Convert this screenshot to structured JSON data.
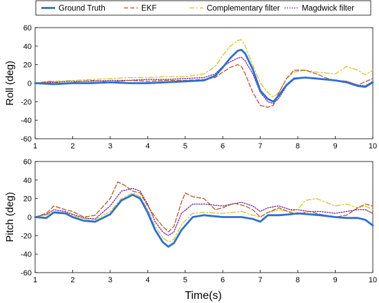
{
  "chart_data": {
    "type": "line",
    "legend": {
      "placement": "top",
      "entries": [
        {
          "name": "Ground Truth",
          "color": "#2e6fd0",
          "style": "solid"
        },
        {
          "name": "EKF",
          "color": "#b0562a",
          "style": "dashed"
        },
        {
          "name": "Complementary filter",
          "color": "#d8c12a",
          "style": "dashdot"
        },
        {
          "name": "Magdwick filter",
          "color": "#7a2f9a",
          "style": "dotted"
        }
      ]
    },
    "xlabel": "Time(s)",
    "xlim": [
      1,
      10
    ],
    "xticks": [
      1,
      2,
      3,
      4,
      5,
      6,
      7,
      8,
      9,
      10
    ],
    "panels": [
      {
        "ylabel": "Roll (deg)",
        "ylim": [
          -60,
          60
        ],
        "yticks": [
          60,
          40,
          20,
          0,
          -20,
          -40,
          -60
        ],
        "series": [
          {
            "name": "Ground Truth",
            "x": [
              1,
              1.5,
              2,
              2.5,
              3,
              3.5,
              4,
              4.5,
              5,
              5.5,
              5.8,
              6.0,
              6.2,
              6.4,
              6.5,
              6.6,
              6.8,
              7.0,
              7.2,
              7.35,
              7.5,
              7.7,
              7.9,
              8.2,
              8.5,
              9.0,
              9.3,
              9.6,
              9.8,
              10
            ],
            "y": [
              0,
              -1,
              0,
              0,
              1,
              0,
              0,
              1,
              2,
              3,
              8,
              17,
              27,
              35,
              36,
              32,
              15,
              -8,
              -17,
              -20,
              -13,
              -2,
              5,
              6,
              5,
              3,
              1,
              -3,
              -4,
              1
            ]
          },
          {
            "name": "EKF",
            "x": [
              1,
              1.4,
              1.8,
              2.2,
              2.6,
              3,
              3.5,
              4,
              4.5,
              5,
              5.5,
              5.8,
              6.0,
              6.2,
              6.4,
              6.5,
              6.6,
              6.8,
              7.0,
              7.2,
              7.35,
              7.5,
              7.7,
              7.9,
              8.2,
              8.5,
              8.8,
              9.0,
              9.3,
              9.6,
              10
            ],
            "y": [
              0,
              2,
              -1,
              2,
              3,
              1,
              3,
              2,
              3,
              3,
              4,
              6,
              12,
              17,
              20,
              18,
              10,
              -10,
              -24,
              -26,
              -24,
              -10,
              5,
              14,
              14,
              10,
              5,
              3,
              2,
              -2,
              5
            ]
          },
          {
            "name": "Complementary filter",
            "x": [
              1,
              1.5,
              2,
              2.5,
              3,
              3.5,
              4,
              4.5,
              5,
              5.5,
              5.8,
              6.0,
              6.2,
              6.4,
              6.5,
              6.6,
              6.8,
              7.0,
              7.2,
              7.35,
              7.5,
              7.7,
              7.9,
              8.2,
              8.5,
              9.0,
              9.3,
              9.6,
              9.8,
              10
            ],
            "y": [
              0,
              2,
              3,
              4,
              5,
              6,
              6,
              7,
              7,
              10,
              18,
              30,
              40,
              46,
              47,
              40,
              20,
              0,
              -10,
              -15,
              -10,
              5,
              12,
              14,
              12,
              10,
              18,
              14,
              9,
              14
            ]
          },
          {
            "name": "Magdwick filter",
            "x": [
              1,
              1.5,
              2,
              2.5,
              3,
              3.5,
              4,
              4.5,
              5,
              5.5,
              5.8,
              6.0,
              6.2,
              6.4,
              6.5,
              6.6,
              6.8,
              7.0,
              7.2,
              7.35,
              7.5,
              7.7,
              7.9,
              8.2,
              8.5,
              9.0,
              9.3,
              9.6,
              9.8,
              10
            ],
            "y": [
              0,
              1,
              2,
              2,
              3,
              3,
              4,
              4,
              5,
              6,
              10,
              18,
              23,
              27,
              28,
              24,
              10,
              -10,
              -20,
              -22,
              -16,
              -3,
              4,
              6,
              5,
              3,
              2,
              -2,
              -3,
              2
            ]
          }
        ]
      },
      {
        "ylabel": "Pitch (deg)",
        "ylim": [
          -60,
          60
        ],
        "yticks": [
          60,
          40,
          20,
          0,
          -20,
          -40,
          -60
        ],
        "series": [
          {
            "name": "Ground Truth",
            "x": [
              1,
              1.3,
              1.5,
              1.8,
              2,
              2.3,
              2.6,
              3,
              3.3,
              3.6,
              3.8,
              4.0,
              4.2,
              4.4,
              4.55,
              4.7,
              4.9,
              5.2,
              5.5,
              6.0,
              6.5,
              6.8,
              7.0,
              7.2,
              7.5,
              7.8,
              8.0,
              8.3,
              8.6,
              9.0,
              9.3,
              9.6,
              9.8,
              10
            ],
            "y": [
              0,
              -1,
              5,
              4,
              0,
              -4,
              -5,
              3,
              18,
              24,
              20,
              5,
              -14,
              -27,
              -32,
              -28,
              -14,
              0,
              2,
              0,
              0,
              -2,
              -5,
              2,
              2,
              3,
              4,
              3,
              2,
              0,
              -1,
              -1,
              -3,
              -9
            ]
          },
          {
            "name": "EKF",
            "x": [
              1,
              1.3,
              1.5,
              1.8,
              2,
              2.3,
              2.6,
              3,
              3.2,
              3.4,
              3.6,
              3.8,
              4.0,
              4.2,
              4.4,
              4.55,
              4.7,
              4.9,
              5.0,
              5.2,
              5.5,
              5.8,
              6.0,
              6.3,
              6.6,
              6.8,
              7.0,
              7.2,
              7.5,
              7.8,
              8.0,
              8.3,
              8.6,
              9.0,
              9.3,
              9.6,
              9.8,
              10
            ],
            "y": [
              0,
              4,
              12,
              8,
              6,
              0,
              2,
              20,
              38,
              34,
              28,
              26,
              12,
              0,
              -10,
              -16,
              -10,
              16,
              26,
              22,
              20,
              8,
              10,
              15,
              12,
              8,
              0,
              5,
              10,
              5,
              3,
              6,
              3,
              0,
              2,
              10,
              14,
              12
            ]
          },
          {
            "name": "Complementary filter",
            "x": [
              1,
              1.3,
              1.5,
              1.8,
              2,
              2.3,
              2.6,
              3,
              3.3,
              3.6,
              3.8,
              4.0,
              4.2,
              4.4,
              4.55,
              4.7,
              4.9,
              5.2,
              5.5,
              6.0,
              6.5,
              6.8,
              7.0,
              7.2,
              7.5,
              7.8,
              8.0,
              8.2,
              8.5,
              9.0,
              9.3,
              9.6,
              9.8,
              10
            ],
            "y": [
              0,
              2,
              6,
              5,
              2,
              -2,
              -3,
              6,
              20,
              26,
              22,
              8,
              -10,
              -22,
              -27,
              -24,
              -8,
              4,
              5,
              4,
              6,
              2,
              0,
              5,
              8,
              6,
              8,
              18,
              20,
              12,
              14,
              10,
              12,
              8
            ]
          },
          {
            "name": "Magdwick filter",
            "x": [
              1,
              1.3,
              1.5,
              1.8,
              2,
              2.3,
              2.6,
              3,
              3.3,
              3.6,
              3.8,
              4.0,
              4.2,
              4.4,
              4.55,
              4.7,
              4.9,
              5.2,
              5.5,
              6.0,
              6.5,
              6.8,
              7.0,
              7.2,
              7.5,
              7.8,
              8.0,
              8.3,
              8.6,
              9.0,
              9.3,
              9.6,
              9.8,
              10
            ],
            "y": [
              0,
              3,
              8,
              6,
              3,
              -1,
              -2,
              12,
              28,
              31,
              28,
              14,
              -5,
              -16,
              -20,
              -16,
              4,
              14,
              14,
              12,
              16,
              12,
              6,
              10,
              12,
              8,
              8,
              6,
              6,
              4,
              6,
              8,
              8,
              4
            ]
          }
        ]
      }
    ]
  }
}
